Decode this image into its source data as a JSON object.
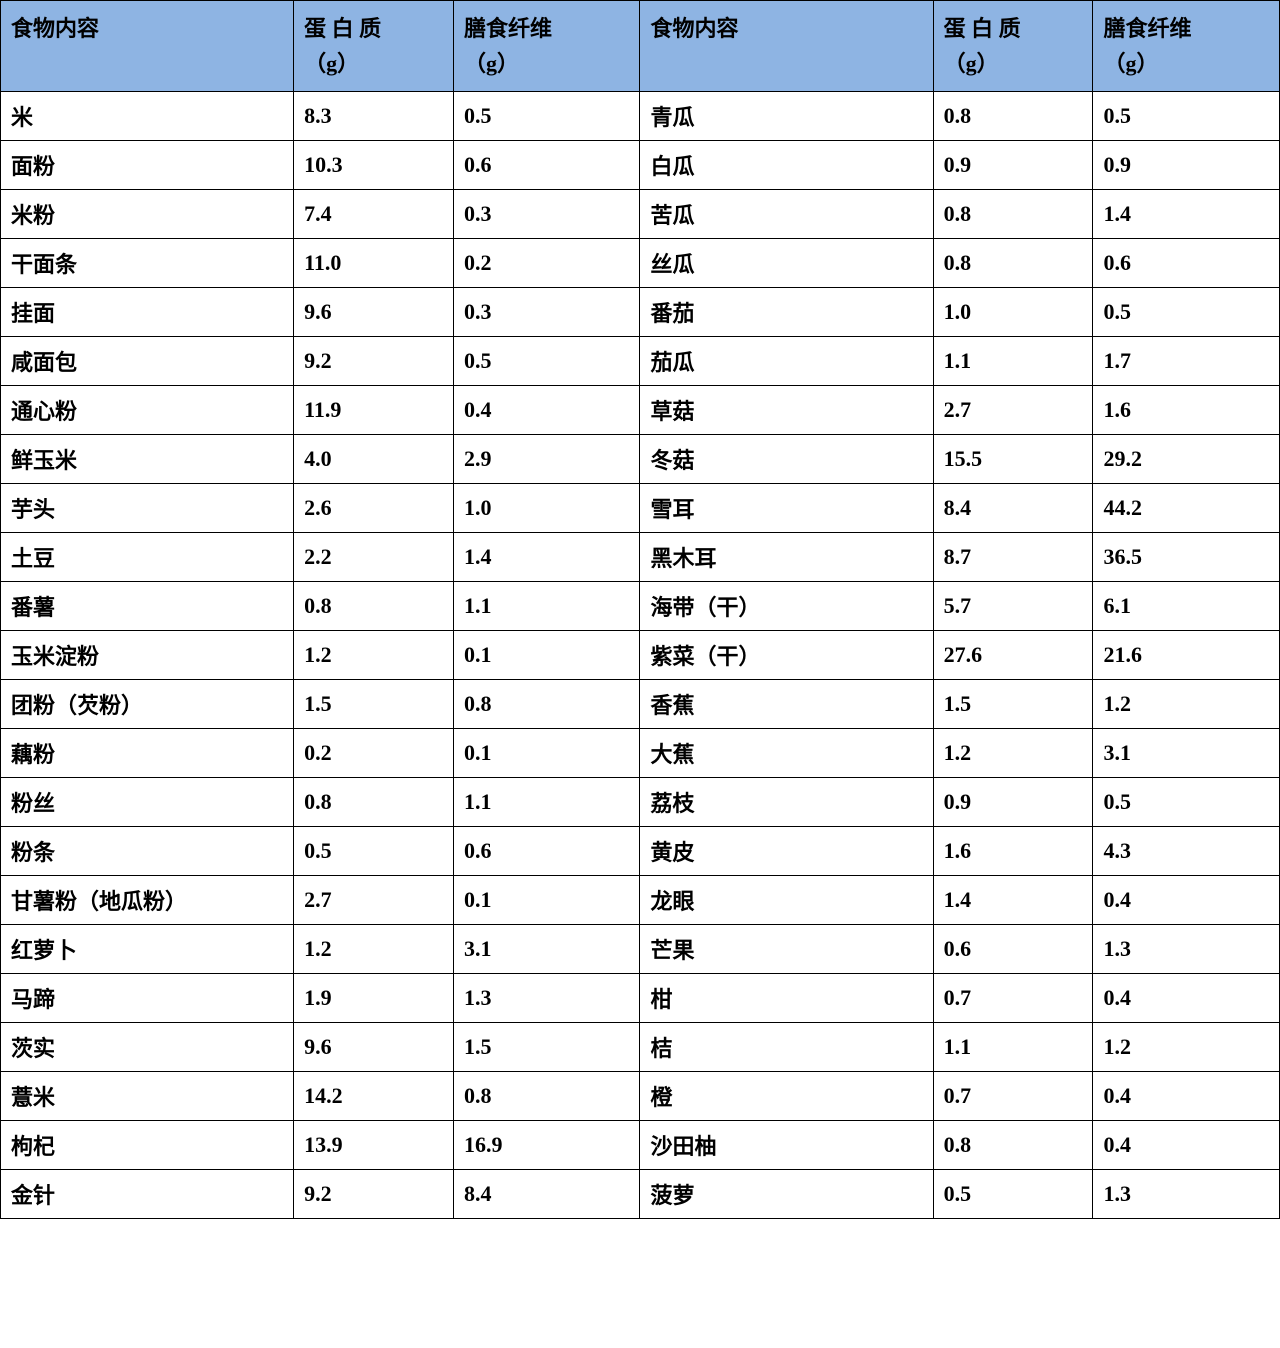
{
  "table": {
    "header_bg_color": "#8eb4e3",
    "border_color": "#000000",
    "text_color": "#000000",
    "font_family": "SimSun",
    "font_size": 22,
    "font_weight": "bold",
    "columns": [
      {
        "key": "food_left",
        "label_line1": "食物内容",
        "label_line2": ""
      },
      {
        "key": "protein_left",
        "label_line1": "蛋 白 质",
        "label_line2": "（g）"
      },
      {
        "key": "fiber_left",
        "label_line1": "膳食纤维",
        "label_line2": "（g）"
      },
      {
        "key": "food_right",
        "label_line1": "食物内容",
        "label_line2": ""
      },
      {
        "key": "protein_right",
        "label_line1": "蛋 白 质",
        "label_line2": "（g）"
      },
      {
        "key": "fiber_right",
        "label_line1": "膳食纤维",
        "label_line2": "（g）"
      }
    ],
    "rows": [
      {
        "food_left": "米",
        "protein_left": "8.3",
        "fiber_left": "0.5",
        "food_right": "青瓜",
        "protein_right": "0.8",
        "fiber_right": "0.5"
      },
      {
        "food_left": "面粉",
        "protein_left": "10.3",
        "fiber_left": "0.6",
        "food_right": "白瓜",
        "protein_right": "0.9",
        "fiber_right": "0.9"
      },
      {
        "food_left": "米粉",
        "protein_left": "7.4",
        "fiber_left": "0.3",
        "food_right": "苦瓜",
        "protein_right": "0.8",
        "fiber_right": "1.4"
      },
      {
        "food_left": "干面条",
        "protein_left": "11.0",
        "fiber_left": "0.2",
        "food_right": "丝瓜",
        "protein_right": "0.8",
        "fiber_right": "0.6"
      },
      {
        "food_left": "挂面",
        "protein_left": "9.6",
        "fiber_left": "0.3",
        "food_right": "番茄",
        "protein_right": "1.0",
        "fiber_right": "0.5"
      },
      {
        "food_left": "咸面包",
        "protein_left": "9.2",
        "fiber_left": "0.5",
        "food_right": "茄瓜",
        "protein_right": "1.1",
        "fiber_right": "1.7"
      },
      {
        "food_left": "通心粉",
        "protein_left": "11.9",
        "fiber_left": "0.4",
        "food_right": "草菇",
        "protein_right": "2.7",
        "fiber_right": "1.6"
      },
      {
        "food_left": "鲜玉米",
        "protein_left": "4.0",
        "fiber_left": "2.9",
        "food_right": "冬菇",
        "protein_right": "15.5",
        "fiber_right": "29.2"
      },
      {
        "food_left": "芋头",
        "protein_left": "2.6",
        "fiber_left": "1.0",
        "food_right": "雪耳",
        "protein_right": "8.4",
        "fiber_right": "44.2"
      },
      {
        "food_left": "土豆",
        "protein_left": "2.2",
        "fiber_left": "1.4",
        "food_right": "黑木耳",
        "protein_right": "8.7",
        "fiber_right": "36.5"
      },
      {
        "food_left": "番薯",
        "protein_left": "0.8",
        "fiber_left": "1.1",
        "food_right": "海带（干）",
        "protein_right": "5.7",
        "fiber_right": "6.1"
      },
      {
        "food_left": "玉米淀粉",
        "protein_left": "1.2",
        "fiber_left": "0.1",
        "food_right": "紫菜（干）",
        "protein_right": "27.6",
        "fiber_right": "21.6"
      },
      {
        "food_left": "团粉（芡粉）",
        "protein_left": "1.5",
        "fiber_left": "0.8",
        "food_right": "香蕉",
        "protein_right": "1.5",
        "fiber_right": "1.2"
      },
      {
        "food_left": "藕粉",
        "protein_left": "0.2",
        "fiber_left": "0.1",
        "food_right": "大蕉",
        "protein_right": "1.2",
        "fiber_right": "3.1"
      },
      {
        "food_left": "粉丝",
        "protein_left": "0.8",
        "fiber_left": "1.1",
        "food_right": "荔枝",
        "protein_right": "0.9",
        "fiber_right": "0.5"
      },
      {
        "food_left": "粉条",
        "protein_left": "0.5",
        "fiber_left": "0.6",
        "food_right": "黄皮",
        "protein_right": "1.6",
        "fiber_right": "4.3"
      },
      {
        "food_left": "甘薯粉（地瓜粉）",
        "protein_left": "2.7",
        "fiber_left": "0.1",
        "food_right": "龙眼",
        "protein_right": "1.4",
        "fiber_right": "0.4"
      },
      {
        "food_left": "红萝卜",
        "protein_left": "1.2",
        "fiber_left": "3.1",
        "food_right": "芒果",
        "protein_right": "0.6",
        "fiber_right": "1.3"
      },
      {
        "food_left": "马蹄",
        "protein_left": "1.9",
        "fiber_left": "1.3",
        "food_right": "柑",
        "protein_right": "0.7",
        "fiber_right": "0.4"
      },
      {
        "food_left": "茨实",
        "protein_left": "9.6",
        "fiber_left": "1.5",
        "food_right": "桔",
        "protein_right": "1.1",
        "fiber_right": "1.2"
      },
      {
        "food_left": "薏米",
        "protein_left": "14.2",
        "fiber_left": "0.8",
        "food_right": "橙",
        "protein_right": "0.7",
        "fiber_right": "0.4"
      },
      {
        "food_left": "枸杞",
        "protein_left": "13.9",
        "fiber_left": "16.9",
        "food_right": "沙田柚",
        "protein_right": "0.8",
        "fiber_right": "0.4"
      },
      {
        "food_left": "金针",
        "protein_left": "9.2",
        "fiber_left": "8.4",
        "food_right": "菠萝",
        "protein_right": "0.5",
        "fiber_right": "1.3"
      }
    ]
  }
}
